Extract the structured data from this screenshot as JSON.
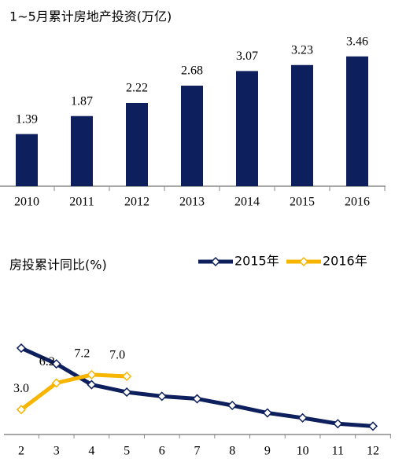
{
  "chart_data": [
    {
      "type": "bar",
      "title": "1~5月累计房地产投资(万亿)",
      "categories": [
        "2010",
        "2011",
        "2012",
        "2013",
        "2014",
        "2015",
        "2016"
      ],
      "values": [
        1.39,
        1.87,
        2.22,
        2.68,
        3.07,
        3.23,
        3.46
      ],
      "color": "#0d1f5c",
      "ylim": [
        0,
        4
      ]
    },
    {
      "type": "line",
      "title": "房投累计同比(%)",
      "categories": [
        "2",
        "3",
        "4",
        "5",
        "6",
        "7",
        "8",
        "9",
        "10",
        "11",
        "12"
      ],
      "series": [
        {
          "name": "2015年",
          "color": "#0d1f5c",
          "values": [
            10.4,
            8.5,
            6.0,
            5.1,
            4.6,
            4.3,
            3.5,
            2.6,
            2.0,
            1.3,
            1.0
          ]
        },
        {
          "name": "2016年",
          "color": "#f7b500",
          "values": [
            3.0,
            6.2,
            7.2,
            7.0,
            null,
            null,
            null,
            null,
            null,
            null,
            null
          ],
          "value_labels": [
            "3.0",
            "6.2",
            "7.2",
            "7.0",
            null,
            null,
            null,
            null,
            null,
            null,
            null
          ]
        }
      ],
      "ylim": [
        0,
        14
      ],
      "legend": "top-right"
    }
  ]
}
